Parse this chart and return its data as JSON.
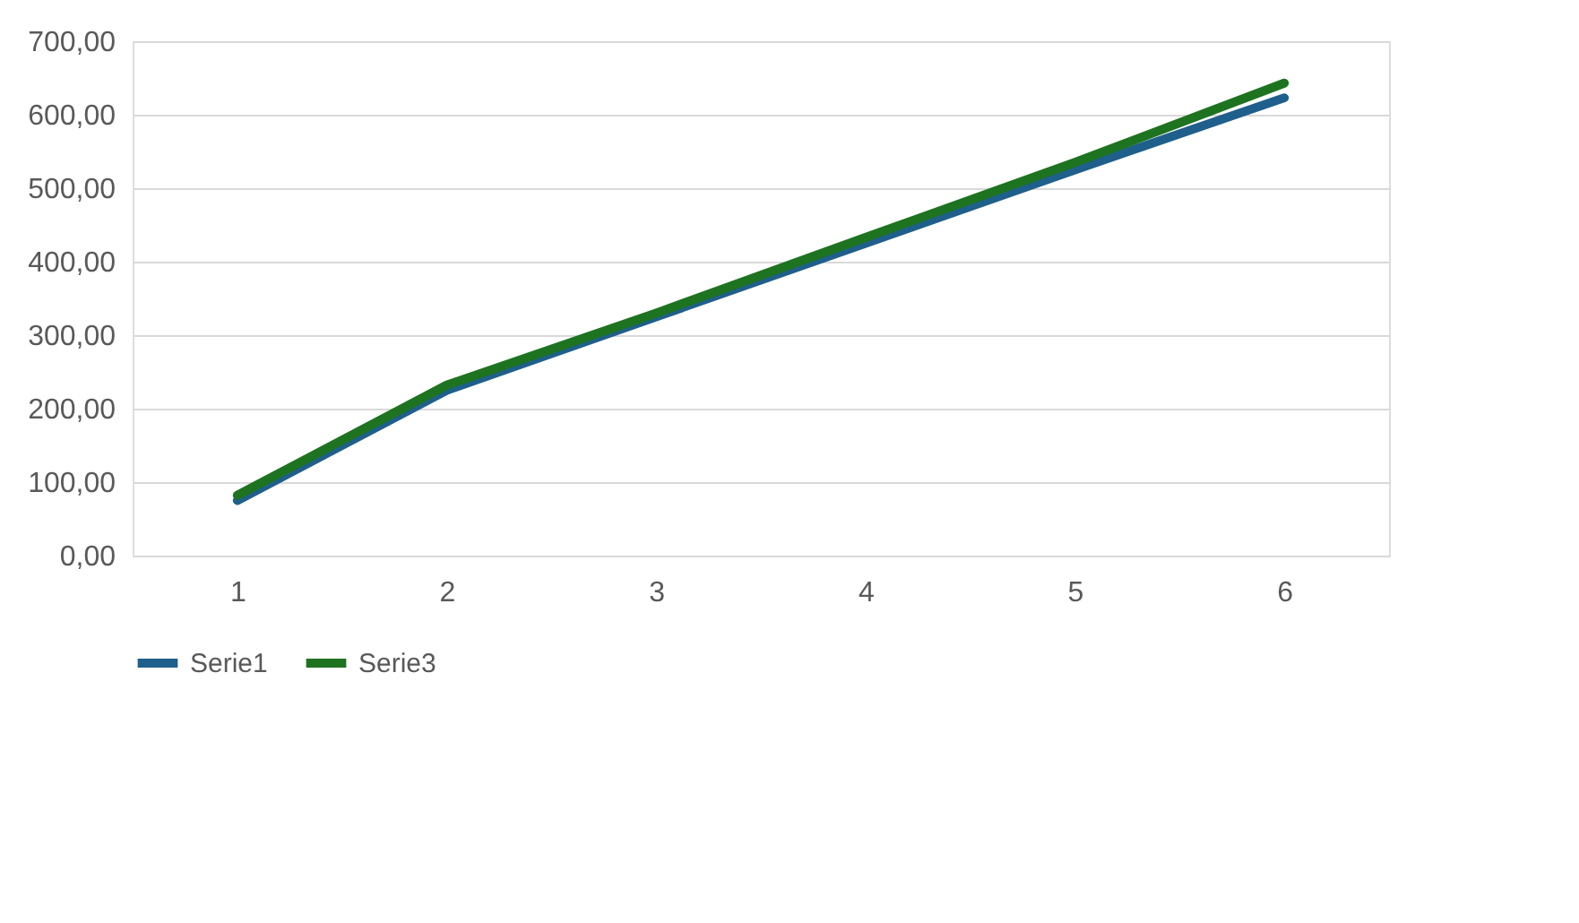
{
  "chart_data": {
    "type": "line",
    "categories": [
      "1",
      "2",
      "3",
      "4",
      "5",
      "6"
    ],
    "series": [
      {
        "name": "Serie1",
        "color": "#1f5f8b",
        "values": [
          75,
          225,
          325,
          425,
          525,
          623
        ]
      },
      {
        "name": "Serie3",
        "color": "#1e7320",
        "values": [
          82,
          232,
          330,
          433,
          535,
          643
        ]
      }
    ],
    "ylim": [
      0,
      700
    ],
    "yticks": [
      {
        "value": 0,
        "label": "0,00"
      },
      {
        "value": 100,
        "label": "100,00"
      },
      {
        "value": 200,
        "label": "200,00"
      },
      {
        "value": 300,
        "label": "300,00"
      },
      {
        "value": 400,
        "label": "400,00"
      },
      {
        "value": 500,
        "label": "500,00"
      },
      {
        "value": 600,
        "label": "600,00"
      },
      {
        "value": 700,
        "label": "700,00"
      }
    ],
    "grid": "y",
    "legend": "bottom",
    "marker": "none",
    "line_style": "solid"
  }
}
